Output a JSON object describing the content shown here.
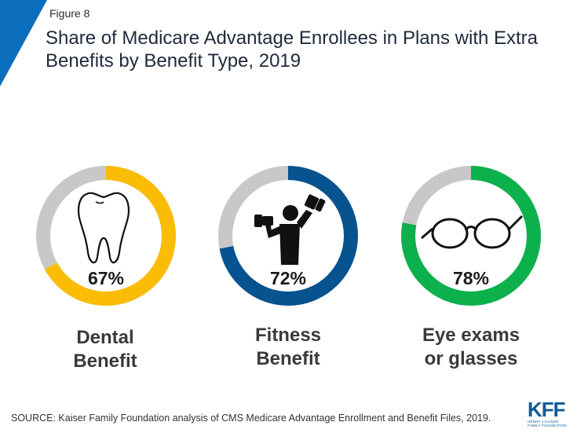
{
  "figure_label": "Figure 8",
  "title": "Share of Medicare Advantage Enrollees in Plans with Extra Benefits by Benefit Type, 2019",
  "source": "SOURCE: Kaiser Family Foundation analysis of CMS Medicare Advantage Enrollment and Benefit Files, 2019.",
  "logo": {
    "text": "KFF",
    "sub_line1": "HENRY J KAISER",
    "sub_line2": "FAMILY FOUNDATION"
  },
  "colors": {
    "accent_blue": "#0b5a96",
    "remainder_gray": "#c8c8c8"
  },
  "chart_data": [
    {
      "type": "pie",
      "category": "Dental Benefit",
      "caption_lines": [
        "Dental",
        "Benefit"
      ],
      "value": 67,
      "label": "67%",
      "color": "#fbbc05",
      "icon": "tooth-icon"
    },
    {
      "type": "pie",
      "category": "Fitness Benefit",
      "caption_lines": [
        "Fitness",
        "Benefit"
      ],
      "value": 72,
      "label": "72%",
      "color": "#06538f",
      "icon": "weightlifter-icon"
    },
    {
      "type": "pie",
      "category": "Eye exams or glasses",
      "caption_lines": [
        "Eye exams",
        "or glasses"
      ],
      "value": 78,
      "label": "78%",
      "color": "#0db14b",
      "icon": "glasses-icon"
    }
  ]
}
